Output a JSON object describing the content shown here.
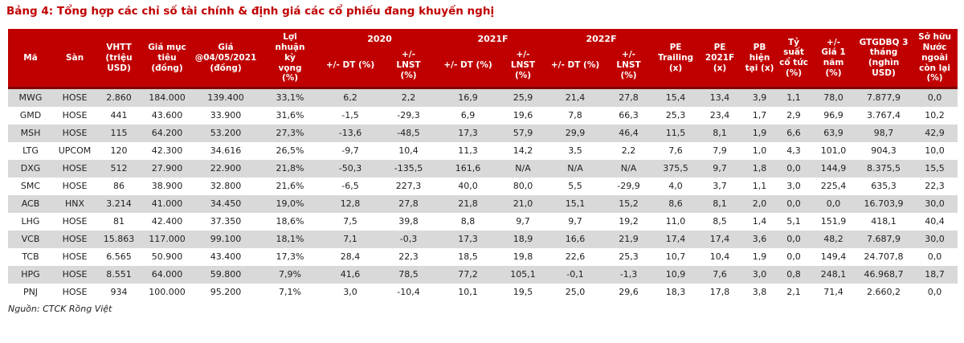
{
  "page": {
    "title": "Bảng 4: Tổng hợp các chỉ số tài chính & định giá các cổ phiếu đang khuyến nghị",
    "source": "Nguồn: CTCK Rồng Việt"
  },
  "colors": {
    "accent_red": "#C00000",
    "header_bg": "#C00000",
    "header_rule": "#7F0000",
    "stripe_gray": "#D9D9D9",
    "text_dark": "#1F1F1F",
    "header_text": "#FFFFFF"
  },
  "table": {
    "leading_headers": [
      "Mã",
      "Sàn",
      "VHTT (triệu USD)",
      "Giá mục tiêu (đồng)",
      "Giá @04/05/2021 (đồng)",
      "Lợi nhuận kỳ vọng (%)"
    ],
    "year_groups": [
      "2020",
      "2021F",
      "2022F"
    ],
    "sub_headers": [
      "+/- DT (%)",
      "+/- LNST (%)",
      "+/- DT (%)",
      "+/- LNST (%)",
      "+/- DT (%)",
      "+/- LNST (%)"
    ],
    "trailing_headers": [
      "PE Trailing (x)",
      "PE 2021F (x)",
      "PB hiện tại (x)",
      "Tỷ suất cổ tức (%)",
      "+/- Giá 1 năm (%)",
      "GTGDBQ 3 tháng (nghìn USD)",
      "Sở hữu Nước ngoài còn lại (%)"
    ],
    "rows": [
      [
        "MWG",
        "HOSE",
        "2.860",
        "184.000",
        "139.400",
        "33,1%",
        "6,2",
        "2,2",
        "16,9",
        "25,9",
        "21,4",
        "27,8",
        "15,4",
        "13,4",
        "3,9",
        "1,1",
        "78,0",
        "7.877,9",
        "0,0"
      ],
      [
        "GMD",
        "HOSE",
        "441",
        "43.600",
        "33.900",
        "31,6%",
        "-1,5",
        "-29,3",
        "6,9",
        "19,6",
        "7,8",
        "66,3",
        "25,3",
        "23,4",
        "1,7",
        "2,9",
        "96,9",
        "3.767,4",
        "10,2"
      ],
      [
        "MSH",
        "HOSE",
        "115",
        "64.200",
        "53.200",
        "27,3%",
        "-13,6",
        "-48,5",
        "17,3",
        "57,9",
        "29,9",
        "46,4",
        "11,5",
        "8,1",
        "1,9",
        "6,6",
        "63,9",
        "98,7",
        "42,9"
      ],
      [
        "LTG",
        "UPCOM",
        "120",
        "42.300",
        "34.616",
        "26,5%",
        "-9,7",
        "10,4",
        "11,3",
        "14,2",
        "3,5",
        "2,2",
        "7,6",
        "7,9",
        "1,0",
        "4,3",
        "101,0",
        "904,3",
        "10,0"
      ],
      [
        "DXG",
        "HOSE",
        "512",
        "27.900",
        "22.900",
        "21,8%",
        "-50,3",
        "-135,5",
        "161,6",
        "N/A",
        "N/A",
        "N/A",
        "375,5",
        "9,7",
        "1,8",
        "0,0",
        "144,9",
        "8.375,5",
        "15,5"
      ],
      [
        "SMC",
        "HOSE",
        "86",
        "38.900",
        "32.800",
        "21,6%",
        "-6,5",
        "227,3",
        "40,0",
        "80,0",
        "5,5",
        "-29,9",
        "4,0",
        "3,7",
        "1,1",
        "3,0",
        "225,4",
        "635,3",
        "22,3"
      ],
      [
        "ACB",
        "HNX",
        "3.214",
        "41.000",
        "34.450",
        "19,0%",
        "12,8",
        "27,8",
        "21,8",
        "21,0",
        "15,1",
        "15,2",
        "8,6",
        "8,1",
        "2,0",
        "0,0",
        "0,0",
        "16.703,9",
        "30,0"
      ],
      [
        "LHG",
        "HOSE",
        "81",
        "42.400",
        "37.350",
        "18,6%",
        "7,5",
        "39,8",
        "8,8",
        "9,7",
        "9,7",
        "19,2",
        "11,0",
        "8,5",
        "1,4",
        "5,1",
        "151,9",
        "418,1",
        "40,4"
      ],
      [
        "VCB",
        "HOSE",
        "15.863",
        "117.000",
        "99.100",
        "18,1%",
        "7,1",
        "-0,3",
        "17,3",
        "18,9",
        "16,6",
        "21,9",
        "17,4",
        "17,4",
        "3,6",
        "0,0",
        "48,2",
        "7.687,9",
        "30,0"
      ],
      [
        "TCB",
        "HOSE",
        "6.565",
        "50.900",
        "43.400",
        "17,3%",
        "28,4",
        "22,3",
        "18,5",
        "19,8",
        "22,6",
        "25,3",
        "10,7",
        "10,4",
        "1,9",
        "0,0",
        "149,4",
        "24.707,8",
        "0,0"
      ],
      [
        "HPG",
        "HOSE",
        "8.551",
        "64.000",
        "59.800",
        "7,9%",
        "41,6",
        "78,5",
        "77,2",
        "105,1",
        "-0,1",
        "-1,3",
        "10,9",
        "7,6",
        "3,0",
        "0,8",
        "248,1",
        "46.968,7",
        "18,7"
      ],
      [
        "PNJ",
        "HOSE",
        "934",
        "100.000",
        "95.200",
        "7,1%",
        "3,0",
        "-10,4",
        "10,1",
        "19,5",
        "25,0",
        "29,6",
        "18,3",
        "17,8",
        "3,8",
        "2,1",
        "71,4",
        "2.660,2",
        "0,0"
      ]
    ]
  }
}
